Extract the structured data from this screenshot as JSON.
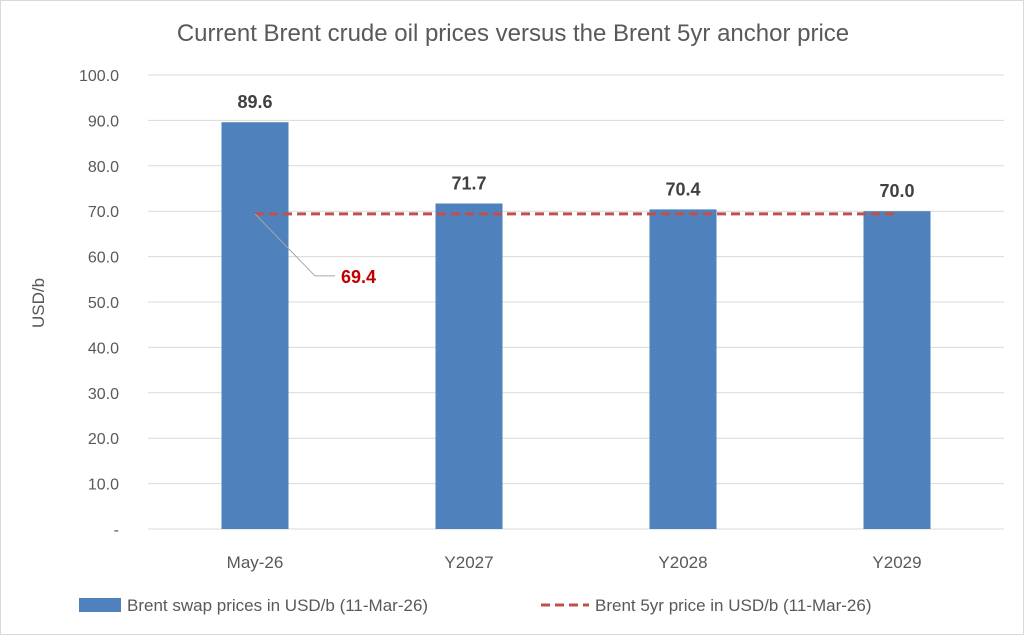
{
  "chart_data": {
    "type": "bar",
    "title": "Current Brent crude oil prices versus the Brent 5yr anchor price",
    "xlabel": "",
    "ylabel": "USD/b",
    "ylim": [
      0,
      100
    ],
    "yticks": [
      "-",
      "10.0",
      "20.0",
      "30.0",
      "40.0",
      "50.0",
      "60.0",
      "70.0",
      "80.0",
      "90.0",
      "100.0"
    ],
    "grid": true,
    "legend_position": "bottom",
    "categories": [
      "May-26",
      "Y2027",
      "Y2028",
      "Y2029"
    ],
    "series": [
      {
        "name": "Brent swap prices in USD/b (11-Mar-26)",
        "type": "bar",
        "color": "#4f81bd",
        "values": [
          89.6,
          71.7,
          70.4,
          70.0
        ],
        "labels": [
          "89.6",
          "71.7",
          "70.4",
          "70.0"
        ]
      },
      {
        "name": "Brent 5yr price in USD/b (11-Mar-26)",
        "type": "line",
        "style": "dashed",
        "color": "#c0504d",
        "values": [
          69.4,
          69.4,
          69.4,
          69.4
        ],
        "annotation": "69.4",
        "annotation_color": "#c00000"
      }
    ]
  }
}
